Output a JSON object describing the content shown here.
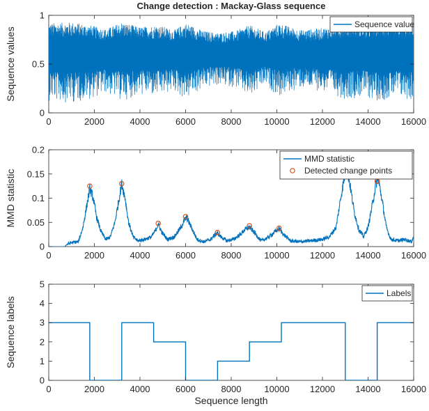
{
  "figure": {
    "title": "Change detection : Mackay-Glass sequence"
  },
  "chart_data": [
    {
      "type": "line",
      "title": "Change detection : Mackay-Glass sequence",
      "xlabel": "",
      "ylabel": "Sequence values",
      "xlim": [
        0,
        16000
      ],
      "ylim": [
        0,
        1
      ],
      "xticks": [
        "0",
        "2000",
        "4000",
        "6000",
        "8000",
        "10000",
        "12000",
        "14000",
        "16000"
      ],
      "yticks": [
        "0",
        "0.5",
        "1"
      ],
      "legend_position": "top-right",
      "series": [
        {
          "name": "Sequence value",
          "color": "#0072BD",
          "description_free": true,
          "envelope": {
            "x": [
              0,
              1000,
              1800,
              2500,
              3200,
              4000,
              4800,
              5500,
              6000,
              6800,
              7400,
              8200,
              8800,
              9500,
              10100,
              11000,
              12000,
              13000,
              13800,
              14400,
              15200,
              16000
            ],
            "lower": [
              0.12,
              0.1,
              0.14,
              0.2,
              0.12,
              0.18,
              0.16,
              0.22,
              0.13,
              0.25,
              0.28,
              0.26,
              0.14,
              0.28,
              0.16,
              0.25,
              0.22,
              0.14,
              0.16,
              0.12,
              0.15,
              0.12
            ],
            "upper": [
              0.92,
              0.93,
              0.9,
              0.86,
              0.93,
              0.88,
              0.9,
              0.85,
              0.92,
              0.84,
              0.82,
              0.84,
              0.9,
              0.83,
              0.92,
              0.85,
              0.87,
              0.92,
              0.9,
              0.93,
              0.9,
              0.92
            ],
            "center": 0.58
          }
        }
      ]
    },
    {
      "type": "line",
      "title": "",
      "xlabel": "",
      "ylabel": "MMD statistic",
      "xlim": [
        0,
        16000
      ],
      "ylim": [
        0,
        0.2
      ],
      "xticks": [
        "0",
        "2000",
        "4000",
        "6000",
        "8000",
        "10000",
        "12000",
        "14000",
        "16000"
      ],
      "yticks": [
        "0",
        "0.05",
        "0.1",
        "0.15",
        "0.2"
      ],
      "legend_position": "top-right",
      "series": [
        {
          "name": "MMD statistic",
          "color": "#0072BD",
          "x": [
            0,
            700,
            800,
            1000,
            1300,
            1500,
            1650,
            1800,
            1950,
            2100,
            2300,
            2500,
            2700,
            2900,
            3050,
            3200,
            3350,
            3500,
            3700,
            3900,
            4200,
            4500,
            4700,
            4800,
            4950,
            5200,
            5500,
            5800,
            5950,
            6050,
            6200,
            6500,
            6800,
            7100,
            7300,
            7400,
            7550,
            7800,
            8100,
            8400,
            8600,
            8800,
            9000,
            9300,
            9600,
            9900,
            10100,
            10300,
            10600,
            11000,
            11500,
            12000,
            12300,
            12600,
            12800,
            12950,
            13050,
            13200,
            13400,
            13600,
            13800,
            14000,
            14200,
            14350,
            14450,
            14600,
            14800,
            15000,
            15300,
            15600,
            15900,
            16000
          ],
          "y": [
            0,
            0,
            0.005,
            0.008,
            0.01,
            0.04,
            0.08,
            0.12,
            0.1,
            0.06,
            0.03,
            0.015,
            0.02,
            0.05,
            0.09,
            0.13,
            0.1,
            0.05,
            0.02,
            0.012,
            0.015,
            0.02,
            0.035,
            0.047,
            0.03,
            0.015,
            0.02,
            0.04,
            0.055,
            0.06,
            0.045,
            0.015,
            0.01,
            0.015,
            0.025,
            0.028,
            0.02,
            0.012,
            0.015,
            0.025,
            0.035,
            0.04,
            0.03,
            0.012,
            0.018,
            0.03,
            0.037,
            0.025,
            0.012,
            0.01,
            0.012,
            0.015,
            0.02,
            0.04,
            0.1,
            0.14,
            0.165,
            0.13,
            0.07,
            0.035,
            0.02,
            0.04,
            0.09,
            0.13,
            0.14,
            0.1,
            0.04,
            0.015,
            0.012,
            0.015,
            0.01,
            0.02
          ]
        },
        {
          "name": "Detected change points",
          "color": "#D95319",
          "marker": "circle",
          "x": [
            1800,
            3200,
            4800,
            6000,
            7400,
            8800,
            10100,
            13000,
            14400
          ],
          "y": [
            0.125,
            0.13,
            0.048,
            0.062,
            0.029,
            0.043,
            0.038,
            0.165,
            0.135
          ]
        }
      ]
    },
    {
      "type": "line",
      "title": "",
      "xlabel": "Sequence length",
      "ylabel": "Sequence labels",
      "xlim": [
        0,
        16000
      ],
      "ylim": [
        0,
        5
      ],
      "xticks": [
        "0",
        "2000",
        "4000",
        "6000",
        "8000",
        "10000",
        "12000",
        "14000",
        "16000"
      ],
      "yticks": [
        "0",
        "1",
        "2",
        "3",
        "4",
        "5"
      ],
      "legend_position": "top-right",
      "series": [
        {
          "name": "Labels",
          "color": "#0072BD",
          "step": true,
          "x": [
            0,
            1800,
            1800,
            3200,
            3200,
            4600,
            4600,
            6000,
            6000,
            7400,
            7400,
            8800,
            8800,
            10200,
            10200,
            13000,
            13000,
            14400,
            14400,
            16000
          ],
          "y": [
            3,
            3,
            0,
            0,
            3,
            3,
            2,
            2,
            0,
            0,
            1,
            1,
            2,
            2,
            3,
            3,
            0,
            0,
            3,
            3
          ]
        }
      ]
    }
  ]
}
